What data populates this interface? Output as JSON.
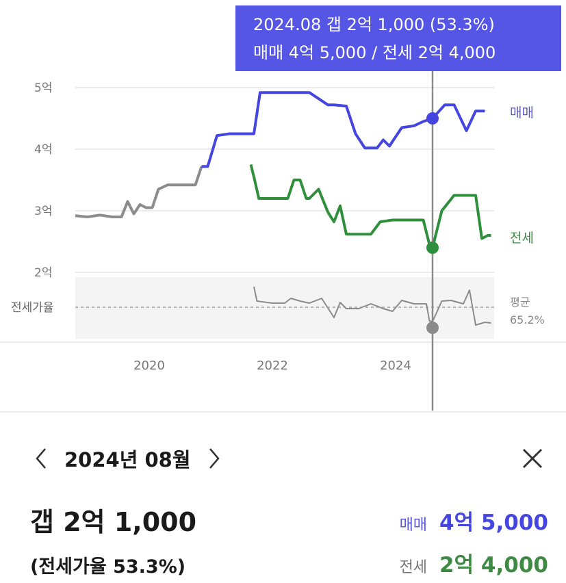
{
  "tooltip": {
    "line1": "2024.08  갭 2억 1,000 (53.3%)",
    "line2": "매매 4억 5,000 / 전세 2억 4,000"
  },
  "detail": {
    "month": "2024년 08월",
    "gap": "갭 2억 1,000",
    "ratio": "(전세가율 53.3%)",
    "sale_label": "매매",
    "sale_value": "4억 5,000",
    "jeonse_label": "전세",
    "jeonse_value": "2억 4,000"
  },
  "colors": {
    "sale": "#4545e0",
    "jeonse": "#2f8f3c",
    "pre_history": "#8c8c8c",
    "ratio_line": "#8a8a8a",
    "tooltip_bg": "#5556e6",
    "sale_text": "#5a5ad8",
    "jeonse_text": "#3e8a44"
  },
  "icons": {
    "prev": "chevron-left-icon",
    "next": "chevron-right-icon",
    "close": "close-icon"
  },
  "chart_data": {
    "type": "line",
    "title": "",
    "ylabel": "",
    "xlabel": "",
    "ylim": [
      2,
      5
    ],
    "y_ticks": [
      "2억",
      "3억",
      "4억",
      "5억"
    ],
    "x_ticks": [
      "2020",
      "2022",
      "2024"
    ],
    "x_range": [
      2018.8,
      2025.6
    ],
    "series": [
      {
        "name": "매매",
        "values_unit": "억",
        "x": [
          2018.8,
          2019.0,
          2019.2,
          2019.4,
          2019.55,
          2019.65,
          2019.75,
          2019.85,
          2019.95,
          2020.05,
          2020.15,
          2020.3,
          2020.6,
          2020.75,
          2020.85,
          2020.95,
          2021.1,
          2021.3,
          2021.55,
          2021.7,
          2021.8,
          2022.0,
          2022.3,
          2022.6,
          2022.9,
          2023.0,
          2023.2,
          2023.35,
          2023.5,
          2023.7,
          2023.8,
          2023.9,
          2024.1,
          2024.3,
          2024.45,
          2024.6,
          2024.8,
          2024.95,
          2025.15,
          2025.3,
          2025.45
        ],
        "values": [
          2.92,
          2.9,
          2.93,
          2.9,
          2.9,
          3.15,
          2.95,
          3.1,
          3.05,
          3.05,
          3.35,
          3.42,
          3.42,
          3.42,
          3.72,
          3.72,
          4.22,
          4.25,
          4.25,
          4.25,
          4.92,
          4.92,
          4.92,
          4.92,
          4.72,
          4.72,
          4.7,
          4.25,
          4.02,
          4.02,
          4.15,
          4.05,
          4.35,
          4.38,
          4.45,
          4.5,
          4.72,
          4.72,
          4.3,
          4.62,
          4.62
        ]
      },
      {
        "name": "전세",
        "values_unit": "억",
        "x": [
          2021.65,
          2021.7,
          2021.78,
          2022.0,
          2022.25,
          2022.35,
          2022.45,
          2022.55,
          2022.6,
          2022.75,
          2022.9,
          2023.0,
          2023.1,
          2023.2,
          2023.3,
          2023.45,
          2023.6,
          2023.75,
          2023.95,
          2024.3,
          2024.45,
          2024.55,
          2024.6,
          2024.75,
          2024.95,
          2025.1,
          2025.3,
          2025.4,
          2025.5,
          2025.55
        ],
        "values": [
          3.75,
          3.55,
          3.2,
          3.2,
          3.2,
          3.5,
          3.5,
          3.2,
          3.2,
          3.35,
          2.98,
          2.82,
          3.08,
          2.62,
          2.62,
          2.62,
          2.62,
          2.82,
          2.85,
          2.85,
          2.85,
          2.45,
          2.4,
          3.0,
          3.25,
          3.25,
          3.25,
          2.55,
          2.6,
          2.6
        ]
      },
      {
        "name": "전세가율",
        "x": [
          2021.7,
          2021.75,
          2022.0,
          2022.2,
          2022.3,
          2022.45,
          2022.6,
          2022.8,
          2023.0,
          2023.1,
          2023.2,
          2023.4,
          2023.6,
          2023.8,
          2023.95,
          2024.1,
          2024.3,
          2024.5,
          2024.55,
          2024.6,
          2024.75,
          2024.9,
          2025.1,
          2025.2,
          2025.3,
          2025.45,
          2025.55
        ],
        "values": [
          0.3,
          0.09,
          0.06,
          0.06,
          0.13,
          0.09,
          0.06,
          0.13,
          -0.15,
          0.07,
          -0.02,
          -0.02,
          0.05,
          -0.02,
          -0.06,
          0.1,
          0.05,
          0.05,
          -0.2,
          -0.21,
          0.09,
          0.1,
          0.05,
          0.25,
          -0.26,
          -0.22,
          -0.23
        ]
      }
    ],
    "highlight": {
      "x_label": "2024.08",
      "x": 2024.6,
      "sale": 4.5,
      "jeonse": 2.4
    },
    "side_labels": {
      "sale": "매매",
      "jeonse": "전세",
      "ratio_axis": "전세가율",
      "avg_label": "평균",
      "avg_value": "65.2%"
    }
  }
}
